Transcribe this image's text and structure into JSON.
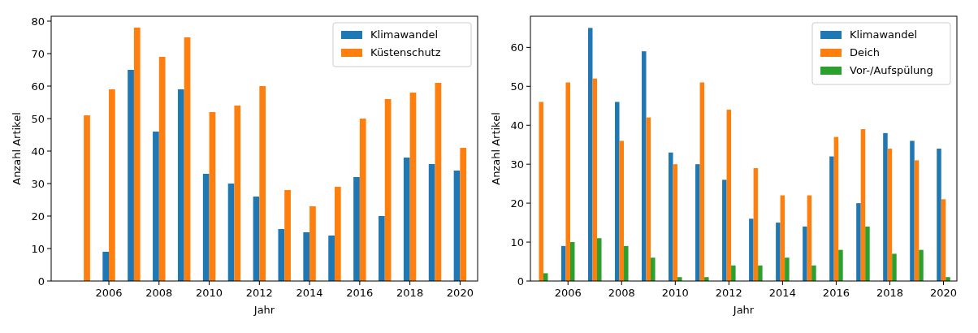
{
  "chart_data": [
    {
      "type": "bar",
      "xlabel": "Jahr",
      "ylabel": "Anzahl Artikel",
      "x": [
        2005,
        2006,
        2007,
        2008,
        2009,
        2010,
        2011,
        2012,
        2013,
        2014,
        2015,
        2016,
        2017,
        2018,
        2019,
        2020
      ],
      "xlim": [
        2003.7,
        2020.7
      ],
      "xticks": [
        2006,
        2008,
        2010,
        2012,
        2014,
        2016,
        2018,
        2020
      ],
      "ylim": [
        0,
        81.5
      ],
      "yticks": [
        0,
        10,
        20,
        30,
        40,
        50,
        60,
        70,
        80
      ],
      "legend": "top right",
      "series": [
        {
          "name": "Klimawandel",
          "color": "#1f77b4",
          "values": [
            0,
            9,
            65,
            46,
            59,
            33,
            30,
            26,
            16,
            15,
            14,
            32,
            20,
            38,
            36,
            34
          ]
        },
        {
          "name": "Küstenschutz",
          "color": "#ff7f0e",
          "values": [
            51,
            59,
            78,
            69,
            75,
            52,
            54,
            60,
            28,
            23,
            29,
            50,
            56,
            58,
            61,
            41
          ]
        }
      ]
    },
    {
      "type": "bar",
      "xlabel": "Jahr",
      "ylabel": "Anzahl Artikel",
      "x": [
        2005,
        2006,
        2007,
        2008,
        2009,
        2010,
        2011,
        2012,
        2013,
        2014,
        2015,
        2016,
        2017,
        2018,
        2019,
        2020
      ],
      "xlim": [
        2004.6,
        2020.5
      ],
      "xticks": [
        2006,
        2008,
        2010,
        2012,
        2014,
        2016,
        2018,
        2020
      ],
      "ylim": [
        0,
        68
      ],
      "yticks": [
        0,
        10,
        20,
        30,
        40,
        50,
        60
      ],
      "legend": "top right",
      "series": [
        {
          "name": "Klimawandel",
          "color": "#1f77b4",
          "values": [
            0,
            9,
            65,
            46,
            59,
            33,
            30,
            26,
            16,
            15,
            14,
            32,
            20,
            38,
            36,
            34
          ]
        },
        {
          "name": "Deich",
          "color": "#ff7f0e",
          "values": [
            46,
            51,
            52,
            36,
            42,
            30,
            51,
            44,
            29,
            22,
            22,
            37,
            39,
            34,
            31,
            21
          ]
        },
        {
          "name": "Vor-/Aufspülung",
          "color": "#2ca02c",
          "values": [
            2,
            10,
            11,
            9,
            6,
            1,
            1,
            4,
            4,
            6,
            4,
            8,
            14,
            7,
            8,
            1
          ]
        }
      ]
    }
  ]
}
